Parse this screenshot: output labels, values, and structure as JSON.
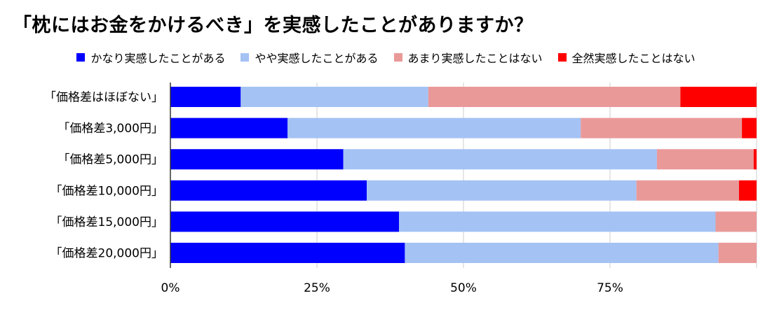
{
  "title": "「枕にはお金をかけるべき」を実感したことがありますか？",
  "chart_data": {
    "type": "bar",
    "orientation": "horizontal",
    "stacked": "percent",
    "title": "「枕にはお金をかけるべき」を実感したことがありますか？",
    "categories": [
      "「価格差はほぼない」",
      "「価格差3,000円」",
      "「価格差5,000円」",
      "「価格差10,000円」",
      "「価格差15,000円」",
      "「価格差20,000円」"
    ],
    "series": [
      {
        "name": "かなり実感したことがある",
        "color": "#0000ff",
        "values": [
          12,
          20,
          29.5,
          33.5,
          39,
          40
        ]
      },
      {
        "name": "やや実感したことがある",
        "color": "#a4c2f4",
        "values": [
          32,
          50,
          53.5,
          46,
          54,
          53.5
        ]
      },
      {
        "name": "あまり実感したことはない",
        "color": "#ea9999",
        "values": [
          43,
          27.5,
          16.5,
          17.5,
          7,
          6.5
        ]
      },
      {
        "name": "全然実感したことはない",
        "color": "#ff0000",
        "values": [
          13,
          2.5,
          0.5,
          3,
          0,
          0
        ]
      }
    ],
    "xlim": [
      0,
      100
    ],
    "x_ticks": [
      "0%",
      "25%",
      "50%",
      "75%"
    ],
    "grid": "vertical",
    "legend": "top-center"
  }
}
